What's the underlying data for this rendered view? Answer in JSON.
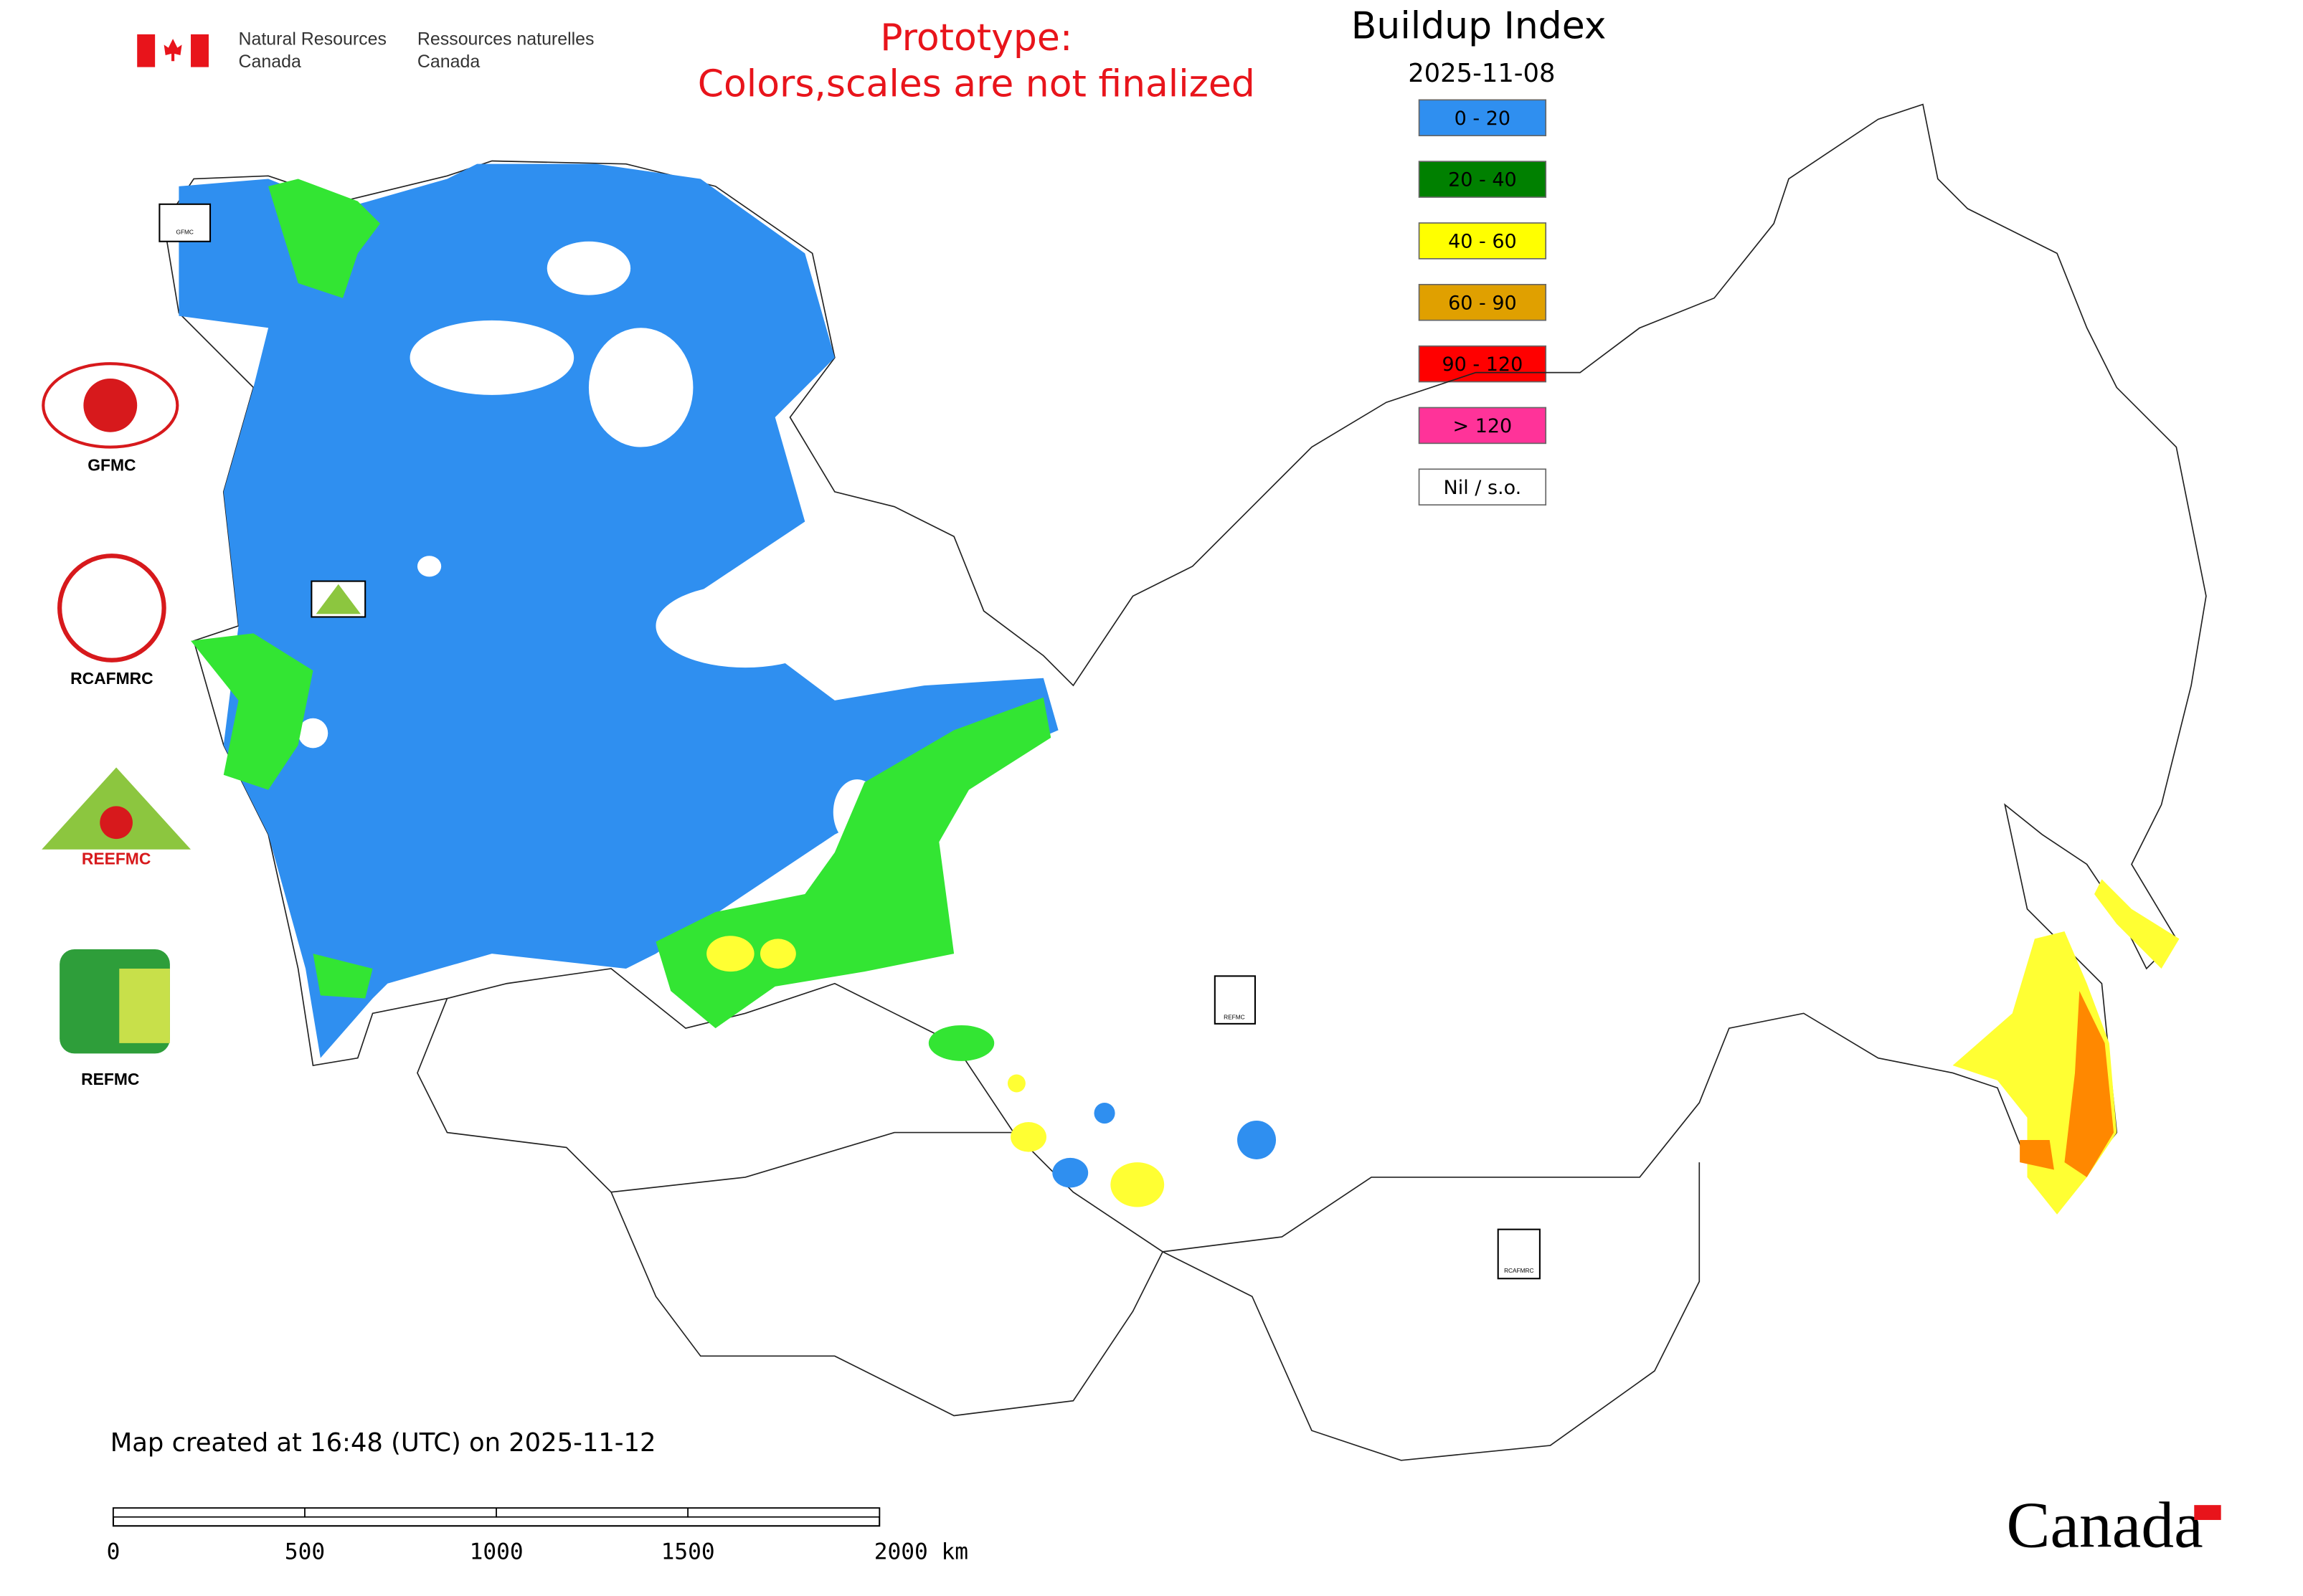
{
  "header": {
    "department_en": [
      "Natural Resources",
      "Canada"
    ],
    "department_fr": [
      "Ressources naturelles",
      "Canada"
    ],
    "note": [
      "Prototype:",
      "Colors,scales are not finalized"
    ],
    "title": "Buildup Index",
    "date": "2025-11-08"
  },
  "legend": [
    {
      "label": "0 - 20",
      "color": "#2f8ff0"
    },
    {
      "label": "20 - 40",
      "color": "#008000"
    },
    {
      "label": "40 - 60",
      "color": "#ffff00"
    },
    {
      "label": "60 - 90",
      "color": "#e0a000"
    },
    {
      "label": "90 - 120",
      "color": "#ff0000"
    },
    {
      "label": "> 120",
      "color": "#ff3399"
    },
    {
      "label": "Nil / s.o.",
      "color": "#ffffff"
    }
  ],
  "markers": [
    "GFMC",
    "REFMC",
    "RCAFMRC"
  ],
  "logos": [
    "GFMC",
    "RCAFMRC",
    "REEFMC",
    "REFMC"
  ],
  "footer": {
    "created": "Map created at 16:48 (UTC) on 2025-11-12",
    "wordmark": "Canada",
    "scale_labels": [
      "0",
      "500",
      "1000",
      "1500",
      "2000 km"
    ]
  }
}
